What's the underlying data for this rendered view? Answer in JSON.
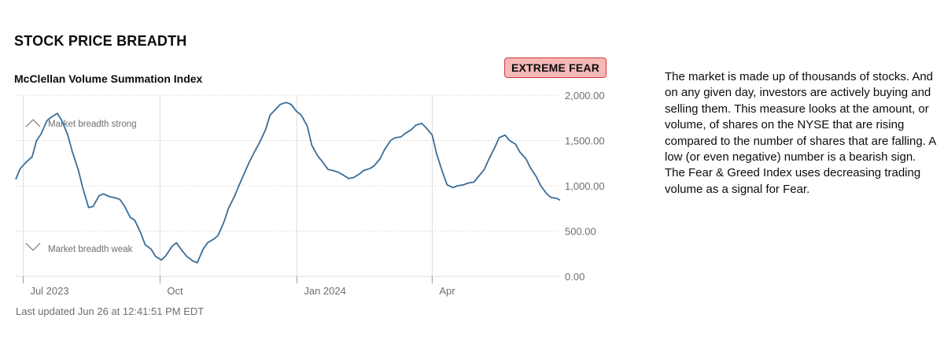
{
  "section_title": "STOCK PRICE BREADTH",
  "status_badge": {
    "label": "EXTREME FEAR",
    "background": "#f7b8b8",
    "border": "#d33a3a"
  },
  "description": "The market is made up of thousands of stocks. And on any given day, investors are actively buying and selling them. This measure looks at the amount, or volume, of shares on the NYSE that are rising compared to the number of shares that are falling. A low (or even negative) number is a bearish sign. The Fear & Greed Index uses decreasing trading volume as a signal for Fear.",
  "last_updated": "Last updated Jun 26 at 12:41:51 PM EDT",
  "annotations": {
    "strong": {
      "label": "Market breadth strong",
      "icon": "chevron-up-icon"
    },
    "weak": {
      "label": "Market breadth weak",
      "icon": "chevron-down-icon"
    }
  },
  "colors": {
    "line": "#3a6d98",
    "grid": "#dcdcdc",
    "axis_text": "#6e6e6e"
  },
  "chart_data": {
    "type": "line",
    "title": "McClellan Volume Summation Index",
    "xlabel": "",
    "ylabel": "",
    "ylim": [
      0,
      2000
    ],
    "x_range": [
      "2023-06-26",
      "2024-06-26"
    ],
    "y_ticks": [
      0,
      500,
      1000,
      1500,
      2000
    ],
    "y_tick_labels": [
      "0.00",
      "500.00",
      "1,000.00",
      "1,500.00",
      "2,000.00"
    ],
    "x_ticks": [
      {
        "date": "2023-07-01",
        "label": "Jul 2023"
      },
      {
        "date": "2023-10-01",
        "label": "Oct"
      },
      {
        "date": "2024-01-01",
        "label": "Jan 2024"
      },
      {
        "date": "2024-04-01",
        "label": "Apr"
      }
    ],
    "grid": true,
    "series": [
      {
        "values": [
          [
            "2023-06-26",
            1070
          ],
          [
            "2023-06-29",
            1190
          ],
          [
            "2023-07-03",
            1260
          ],
          [
            "2023-07-07",
            1320
          ],
          [
            "2023-07-10",
            1500
          ],
          [
            "2023-07-13",
            1570
          ],
          [
            "2023-07-17",
            1720
          ],
          [
            "2023-07-20",
            1760
          ],
          [
            "2023-07-24",
            1800
          ],
          [
            "2023-07-27",
            1720
          ],
          [
            "2023-07-31",
            1560
          ],
          [
            "2023-08-03",
            1380
          ],
          [
            "2023-08-07",
            1180
          ],
          [
            "2023-08-10",
            980
          ],
          [
            "2023-08-14",
            760
          ],
          [
            "2023-08-17",
            770
          ],
          [
            "2023-08-21",
            890
          ],
          [
            "2023-08-24",
            910
          ],
          [
            "2023-08-28",
            880
          ],
          [
            "2023-08-31",
            870
          ],
          [
            "2023-09-04",
            850
          ],
          [
            "2023-09-07",
            780
          ],
          [
            "2023-09-11",
            650
          ],
          [
            "2023-09-14",
            620
          ],
          [
            "2023-09-18",
            480
          ],
          [
            "2023-09-21",
            350
          ],
          [
            "2023-09-25",
            300
          ],
          [
            "2023-09-28",
            220
          ],
          [
            "2023-10-02",
            180
          ],
          [
            "2023-10-05",
            230
          ],
          [
            "2023-10-09",
            330
          ],
          [
            "2023-10-12",
            370
          ],
          [
            "2023-10-16",
            280
          ],
          [
            "2023-10-19",
            220
          ],
          [
            "2023-10-23",
            170
          ],
          [
            "2023-10-26",
            150
          ],
          [
            "2023-10-30",
            300
          ],
          [
            "2023-11-02",
            370
          ],
          [
            "2023-11-06",
            410
          ],
          [
            "2023-11-09",
            450
          ],
          [
            "2023-11-13",
            600
          ],
          [
            "2023-11-16",
            750
          ],
          [
            "2023-11-20",
            880
          ],
          [
            "2023-11-23",
            1000
          ],
          [
            "2023-11-27",
            1150
          ],
          [
            "2023-11-30",
            1260
          ],
          [
            "2023-12-04",
            1390
          ],
          [
            "2023-12-07",
            1480
          ],
          [
            "2023-12-11",
            1620
          ],
          [
            "2023-12-14",
            1780
          ],
          [
            "2023-12-18",
            1850
          ],
          [
            "2023-12-21",
            1900
          ],
          [
            "2023-12-25",
            1920
          ],
          [
            "2023-12-28",
            1900
          ],
          [
            "2024-01-01",
            1820
          ],
          [
            "2024-01-04",
            1780
          ],
          [
            "2024-01-08",
            1660
          ],
          [
            "2024-01-11",
            1450
          ],
          [
            "2024-01-15",
            1330
          ],
          [
            "2024-01-18",
            1270
          ],
          [
            "2024-01-22",
            1180
          ],
          [
            "2024-01-25",
            1170
          ],
          [
            "2024-01-29",
            1150
          ],
          [
            "2024-02-01",
            1120
          ],
          [
            "2024-02-05",
            1080
          ],
          [
            "2024-02-08",
            1090
          ],
          [
            "2024-02-12",
            1130
          ],
          [
            "2024-02-15",
            1170
          ],
          [
            "2024-02-19",
            1190
          ],
          [
            "2024-02-22",
            1220
          ],
          [
            "2024-02-26",
            1300
          ],
          [
            "2024-02-29",
            1400
          ],
          [
            "2024-03-04",
            1500
          ],
          [
            "2024-03-07",
            1530
          ],
          [
            "2024-03-11",
            1540
          ],
          [
            "2024-03-14",
            1580
          ],
          [
            "2024-03-18",
            1620
          ],
          [
            "2024-03-21",
            1670
          ],
          [
            "2024-03-25",
            1690
          ],
          [
            "2024-03-28",
            1640
          ],
          [
            "2024-04-01",
            1560
          ],
          [
            "2024-04-04",
            1350
          ],
          [
            "2024-04-08",
            1150
          ],
          [
            "2024-04-11",
            1010
          ],
          [
            "2024-04-15",
            980
          ],
          [
            "2024-04-18",
            1000
          ],
          [
            "2024-04-22",
            1010
          ],
          [
            "2024-04-25",
            1030
          ],
          [
            "2024-04-29",
            1040
          ],
          [
            "2024-05-02",
            1100
          ],
          [
            "2024-05-06",
            1180
          ],
          [
            "2024-05-09",
            1290
          ],
          [
            "2024-05-13",
            1420
          ],
          [
            "2024-05-16",
            1530
          ],
          [
            "2024-05-20",
            1560
          ],
          [
            "2024-05-23",
            1500
          ],
          [
            "2024-05-27",
            1460
          ],
          [
            "2024-05-30",
            1370
          ],
          [
            "2024-06-03",
            1300
          ],
          [
            "2024-06-06",
            1200
          ],
          [
            "2024-06-10",
            1100
          ],
          [
            "2024-06-13",
            1000
          ],
          [
            "2024-06-17",
            910
          ],
          [
            "2024-06-20",
            870
          ],
          [
            "2024-06-24",
            860
          ],
          [
            "2024-06-26",
            840
          ]
        ]
      }
    ]
  }
}
